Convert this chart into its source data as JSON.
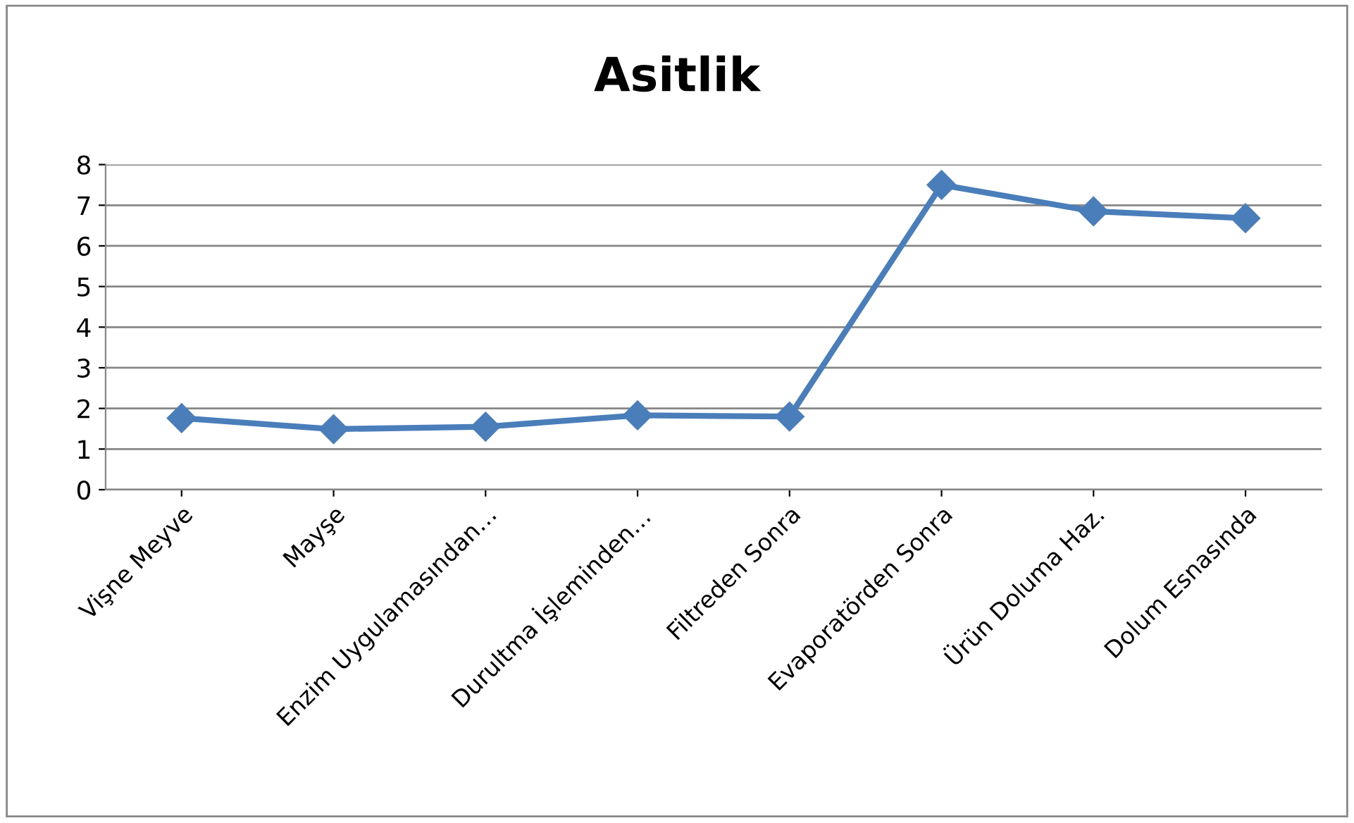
{
  "chart_data": {
    "type": "line",
    "title": "Asitlik",
    "categories": [
      "Vişne Meyve",
      "Mayşe",
      "Enzim Uygulamasından…",
      "Durultma İşleminden…",
      "Filtreden Sonra",
      "Evaporatörden Sonra",
      "Ürün Doluma Haz.",
      "Dolum Esnasında"
    ],
    "values": [
      1.76,
      1.49,
      1.55,
      1.83,
      1.8,
      7.5,
      6.85,
      6.68
    ],
    "color": "#4a7ebb",
    "marker": "diamond",
    "line_style": "solid",
    "ylim": [
      0,
      8
    ],
    "yticks": [
      0,
      1,
      2,
      3,
      4,
      5,
      6,
      7,
      8
    ],
    "grid": "y",
    "legend": false
  }
}
